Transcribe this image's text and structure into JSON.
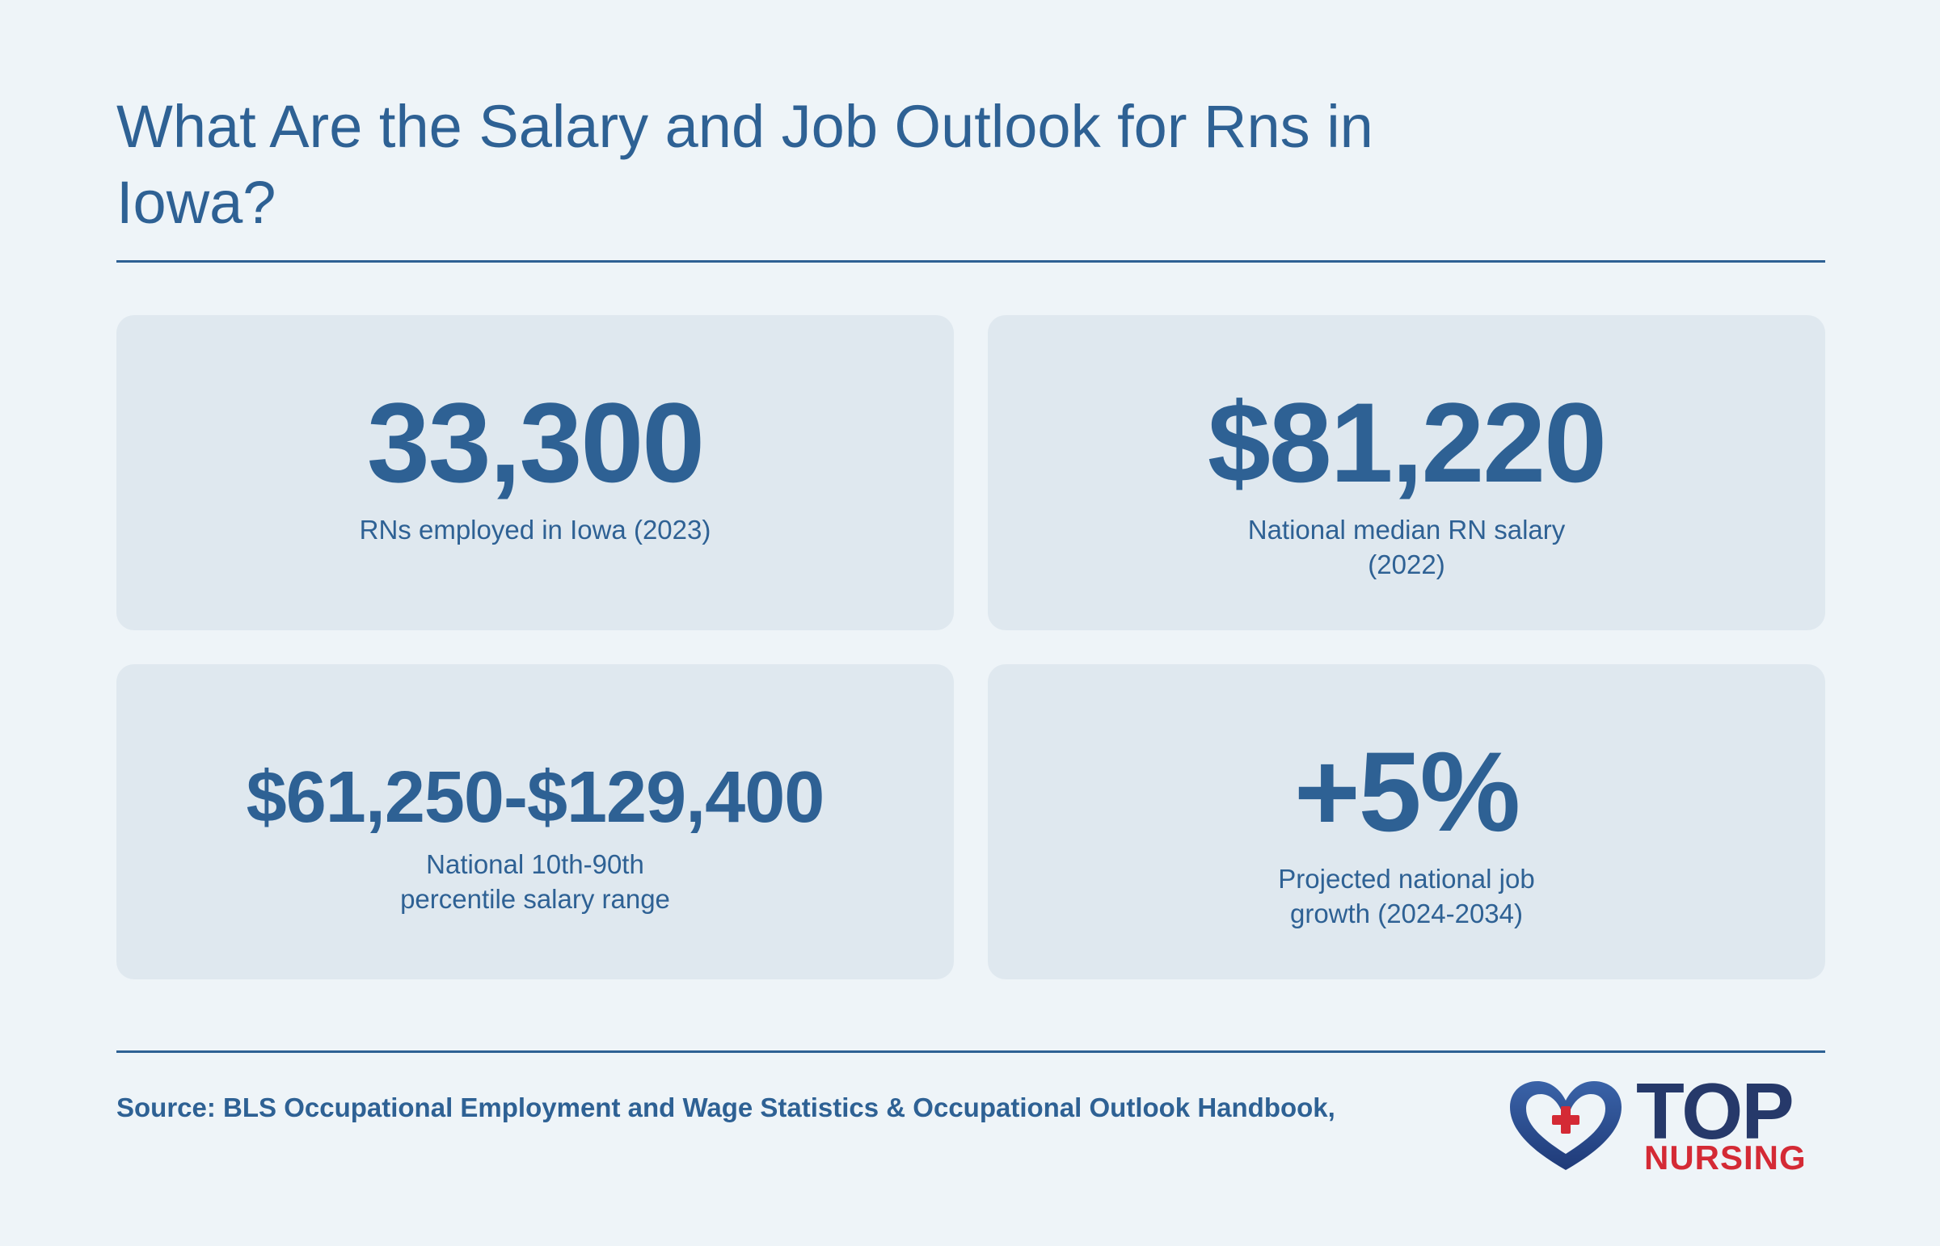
{
  "header": {
    "title": "What Are the Salary and Job Outlook for Rns in Iowa?"
  },
  "stats": [
    {
      "value": "33,300",
      "label": "RNs employed in Iowa (2023)"
    },
    {
      "value": "$81,220",
      "label": "National median RN salary (2022)"
    },
    {
      "value": "$61,250-$129,400",
      "label": "National 10th-90th percentile salary range"
    },
    {
      "value": "+5%",
      "label": "Projected national job growth (2024-2034)"
    }
  ],
  "footer": {
    "source": "Source: BLS Occupational Employment and Wage Statistics & Occupational Outlook Handbook,"
  },
  "logo": {
    "word_top": "TOP",
    "word_bottom": "NURSING",
    "icon": "heart-cross-icon",
    "colors": {
      "navy": "#26396a",
      "red": "#d42a35"
    }
  },
  "colors": {
    "background": "#eef4f8",
    "card": "#dfe8ef",
    "accent": "#2e6194"
  }
}
